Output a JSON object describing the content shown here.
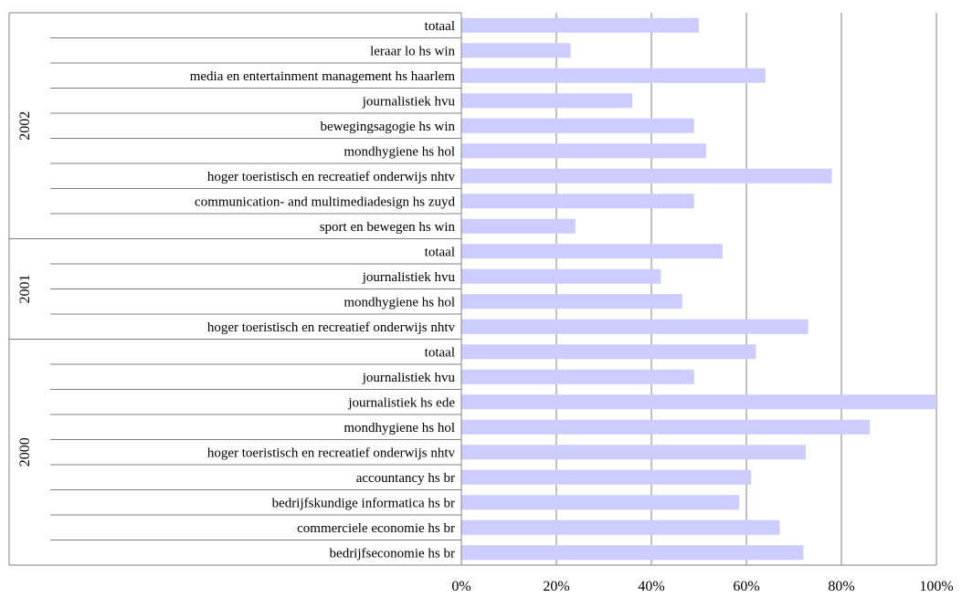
{
  "chart_data": {
    "type": "bar",
    "orientation": "horizontal",
    "xlim": [
      0,
      100
    ],
    "x_ticks": [
      "0%",
      "20%",
      "40%",
      "60%",
      "80%",
      "100%"
    ],
    "grid": true,
    "bar_color": "#ccccff",
    "groups": [
      {
        "name": "2002",
        "items": [
          {
            "label": "totaal",
            "value": 50
          },
          {
            "label": "leraar lo hs win",
            "value": 23
          },
          {
            "label": "media en entertainment management hs haarlem",
            "value": 64
          },
          {
            "label": "journalistiek hvu",
            "value": 36
          },
          {
            "label": "bewegingsagogie hs win",
            "value": 49
          },
          {
            "label": "mondhygiene hs hol",
            "value": 51.5
          },
          {
            "label": "hoger toeristisch en recreatief onderwijs nhtv",
            "value": 78
          },
          {
            "label": "communication- and multimediadesign hs zuyd",
            "value": 49
          },
          {
            "label": "sport en bewegen hs win",
            "value": 24
          }
        ]
      },
      {
        "name": "2001",
        "items": [
          {
            "label": "totaal",
            "value": 55
          },
          {
            "label": "journalistiek hvu",
            "value": 42
          },
          {
            "label": "mondhygiene hs hol",
            "value": 46.5
          },
          {
            "label": "hoger toeristisch en recreatief onderwijs nhtv",
            "value": 73
          }
        ]
      },
      {
        "name": "2000",
        "items": [
          {
            "label": "totaal",
            "value": 62
          },
          {
            "label": "journalistiek hvu",
            "value": 49
          },
          {
            "label": "journalistiek hs ede",
            "value": 100
          },
          {
            "label": "mondhygiene hs hol",
            "value": 86
          },
          {
            "label": "hoger toeristisch en recreatief onderwijs nhtv",
            "value": 72.5
          },
          {
            "label": "accountancy hs br",
            "value": 61
          },
          {
            "label": "bedrijfskundige informatica hs br",
            "value": 58.5
          },
          {
            "label": "commerciele economie hs br",
            "value": 67
          },
          {
            "label": "bedrijfseconomie hs br",
            "value": 72
          }
        ]
      }
    ]
  }
}
